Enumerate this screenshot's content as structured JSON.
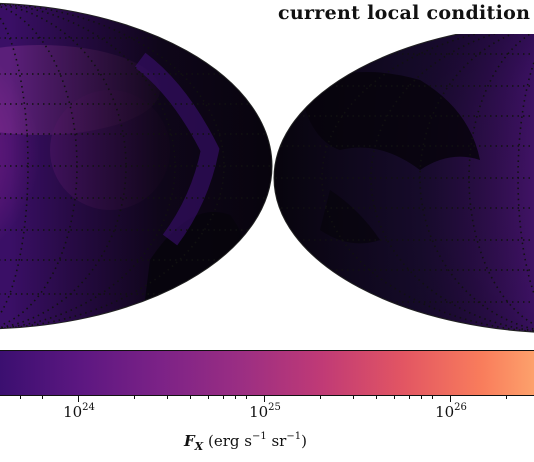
{
  "title": "current local condition",
  "colorbar": {
    "colors": [
      "#3b0f70",
      "#5c1781",
      "#7c2287",
      "#9b2e83",
      "#c03a76",
      "#e25563",
      "#f97d5c",
      "#fda26c"
    ],
    "ticks": [
      {
        "base": "10",
        "exp": "24"
      },
      {
        "base": "10",
        "exp": "25"
      },
      {
        "base": "10",
        "exp": "26"
      }
    ],
    "label": {
      "symbol": "F",
      "subscript": "X",
      "unit_open": " (erg s",
      "exp1": "−1",
      "mid": " sr",
      "exp2": "−1",
      "unit_close": ")"
    }
  },
  "maps": {
    "background_color": "#0a0612",
    "glow_color": "#fbb47a",
    "mid_color": "#7c2287"
  }
}
